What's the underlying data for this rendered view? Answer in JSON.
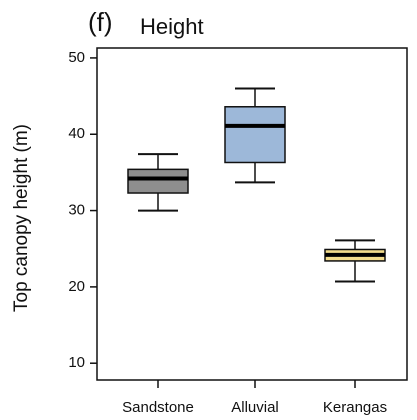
{
  "chart_data": {
    "type": "box",
    "panel_label": "(f)",
    "title": "Height",
    "ylabel": "Top canopy height (m)",
    "categories": [
      "Sandstone",
      "Alluvial",
      "Kerangas"
    ],
    "colors": [
      "#8e8e8e",
      "#9db8d9",
      "#f3dd8c"
    ],
    "min": [
      30.0,
      33.7,
      20.7
    ],
    "q1": [
      32.3,
      36.3,
      23.4
    ],
    "median": [
      34.2,
      41.1,
      24.2
    ],
    "q3": [
      35.4,
      43.6,
      24.9
    ],
    "max": [
      37.4,
      46.0,
      26.1
    ],
    "ylim": [
      7.8,
      51.3
    ],
    "yticks": [
      10,
      20,
      30,
      40,
      50
    ]
  }
}
